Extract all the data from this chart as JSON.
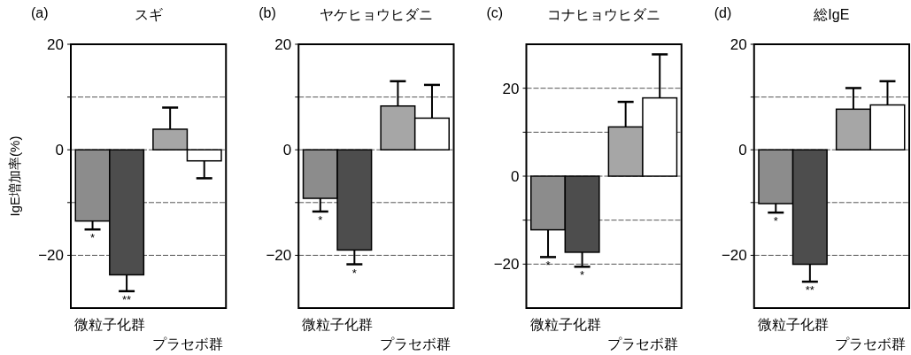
{
  "chart_data": [
    {
      "type": "bar",
      "title": "スギ",
      "annotations": [
        "(a)"
      ],
      "ylabel": "IgE増加率(%)",
      "categories": [
        "微粒子化群",
        "プラセボ群"
      ],
      "ylim": [
        -30,
        20
      ],
      "yticks": [
        {
          "value": 20,
          "label": "20"
        },
        {
          "value": 10,
          "label": null
        },
        {
          "value": 0,
          "label": "0"
        },
        {
          "value": -10,
          "label": null
        },
        {
          "value": -20,
          "label": "−20"
        }
      ],
      "grid": "y",
      "series": [
        {
          "colors": [
            "#8c8c8c",
            "#a6a6a6"
          ],
          "values": [
            -13.5,
            3.9
          ],
          "errors": [
            [
              -15.1,
              -13.5
            ],
            [
              3.9,
              8.0
            ]
          ],
          "value_labels": [
            "*",
            null
          ]
        },
        {
          "colors": [
            "#4d4d4d",
            "#ffffff"
          ],
          "values": [
            -23.7,
            -2.1
          ],
          "errors": [
            [
              -26.8,
              -23.7
            ],
            [
              -5.4,
              -2.1
            ]
          ],
          "value_labels": [
            "**",
            null
          ]
        }
      ]
    },
    {
      "type": "bar",
      "title": "ヤケヒョウヒダニ",
      "annotations": [
        "(b)"
      ],
      "categories": [
        "微粒子化群",
        "プラセボ群"
      ],
      "ylim": [
        -30,
        20
      ],
      "yticks": [
        {
          "value": 20,
          "label": "20"
        },
        {
          "value": 10,
          "label": null
        },
        {
          "value": 0,
          "label": "0"
        },
        {
          "value": -10,
          "label": null
        },
        {
          "value": -20,
          "label": "−20"
        }
      ],
      "grid": "y",
      "series": [
        {
          "colors": [
            "#8c8c8c",
            "#a6a6a6"
          ],
          "values": [
            -9.2,
            8.3
          ],
          "errors": [
            [
              -11.7,
              -9.2
            ],
            [
              8.3,
              13.0
            ]
          ],
          "value_labels": [
            "*",
            null
          ]
        },
        {
          "colors": [
            "#4d4d4d",
            "#ffffff"
          ],
          "values": [
            -19.0,
            6.0
          ],
          "errors": [
            [
              -21.7,
              -19.0
            ],
            [
              6.0,
              12.3
            ]
          ],
          "value_labels": [
            "*",
            null
          ]
        }
      ]
    },
    {
      "type": "bar",
      "title": "コナヒョウヒダニ",
      "annotations": [
        "(c)"
      ],
      "categories": [
        "微粒子化群",
        "プラセボ群"
      ],
      "ylim": [
        -30,
        30
      ],
      "yticks": [
        {
          "value": 20,
          "label": "20"
        },
        {
          "value": 10,
          "label": null
        },
        {
          "value": 0,
          "label": "0"
        },
        {
          "value": -10,
          "label": null
        },
        {
          "value": -20,
          "label": "−20"
        }
      ],
      "grid": "y",
      "series": [
        {
          "colors": [
            "#8c8c8c",
            "#a6a6a6"
          ],
          "values": [
            -12.2,
            11.2
          ],
          "errors": [
            [
              -18.4,
              -12.2
            ],
            [
              11.2,
              16.9
            ]
          ],
          "value_labels": [
            "*",
            null
          ]
        },
        {
          "colors": [
            "#4d4d4d",
            "#ffffff"
          ],
          "values": [
            -17.3,
            17.8
          ],
          "errors": [
            [
              -20.6,
              -17.3
            ],
            [
              17.8,
              27.7
            ]
          ],
          "value_labels": [
            "*",
            null
          ]
        }
      ]
    },
    {
      "type": "bar",
      "title": "総IgE",
      "annotations": [
        "(d)"
      ],
      "categories": [
        "微粒子化群",
        "プラセボ群"
      ],
      "ylim": [
        -30,
        20
      ],
      "yticks": [
        {
          "value": 20,
          "label": "20"
        },
        {
          "value": 10,
          "label": null
        },
        {
          "value": 0,
          "label": "0"
        },
        {
          "value": -10,
          "label": null
        },
        {
          "value": -20,
          "label": "−20"
        }
      ],
      "grid": "y",
      "series": [
        {
          "colors": [
            "#8c8c8c",
            "#a6a6a6"
          ],
          "values": [
            -10.2,
            7.7
          ],
          "errors": [
            [
              -11.9,
              -10.2
            ],
            [
              7.7,
              11.7
            ]
          ],
          "value_labels": [
            "*",
            null
          ]
        },
        {
          "colors": [
            "#4d4d4d",
            "#ffffff"
          ],
          "values": [
            -21.7,
            8.5
          ],
          "errors": [
            [
              -25.0,
              -21.7
            ],
            [
              8.5,
              13.0
            ]
          ],
          "value_labels": [
            "**",
            null
          ]
        }
      ]
    }
  ]
}
